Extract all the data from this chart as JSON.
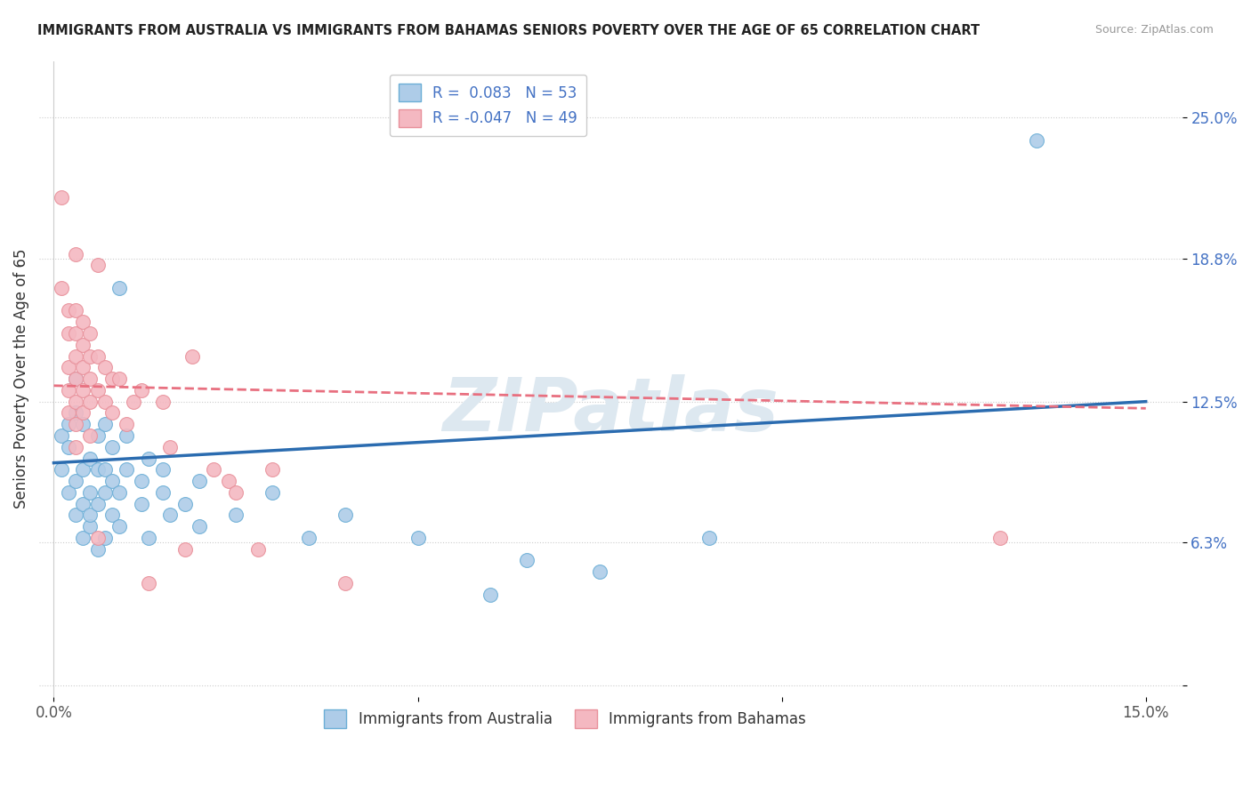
{
  "title": "IMMIGRANTS FROM AUSTRALIA VS IMMIGRANTS FROM BAHAMAS SENIORS POVERTY OVER THE AGE OF 65 CORRELATION CHART",
  "source": "Source: ZipAtlas.com",
  "ylabel": "Seniors Poverty Over the Age of 65",
  "xlim": [
    -0.002,
    0.155
  ],
  "ylim": [
    -0.005,
    0.275
  ],
  "yticks": [
    0.0,
    0.063,
    0.125,
    0.188,
    0.25
  ],
  "ytick_labels": [
    "",
    "6.3%",
    "12.5%",
    "18.8%",
    "25.0%"
  ],
  "xticks": [
    0.0,
    0.05,
    0.1,
    0.15
  ],
  "xtick_labels": [
    "0.0%",
    "",
    "",
    "15.0%"
  ],
  "australia_color": "#aecce8",
  "bahamas_color": "#f4b8c1",
  "australia_edge_color": "#6baed6",
  "bahamas_edge_color": "#e8909a",
  "australia_line_color": "#2b6cb0",
  "bahamas_line_color": "#e87080",
  "watermark_color": "#dde8f0",
  "background_color": "#ffffff",
  "grid_color": "#cccccc",
  "R_australia": 0.083,
  "N_australia": 53,
  "R_bahamas": -0.047,
  "N_bahamas": 49,
  "aus_line_x0": 0.0,
  "aus_line_y0": 0.098,
  "aus_line_x1": 0.15,
  "aus_line_y1": 0.125,
  "bah_line_x0": 0.0,
  "bah_line_y0": 0.132,
  "bah_line_x1": 0.15,
  "bah_line_y1": 0.122,
  "australia_scatter": [
    [
      0.001,
      0.095
    ],
    [
      0.001,
      0.11
    ],
    [
      0.002,
      0.085
    ],
    [
      0.002,
      0.105
    ],
    [
      0.002,
      0.115
    ],
    [
      0.003,
      0.075
    ],
    [
      0.003,
      0.09
    ],
    [
      0.003,
      0.12
    ],
    [
      0.003,
      0.135
    ],
    [
      0.004,
      0.065
    ],
    [
      0.004,
      0.08
    ],
    [
      0.004,
      0.095
    ],
    [
      0.004,
      0.115
    ],
    [
      0.005,
      0.07
    ],
    [
      0.005,
      0.075
    ],
    [
      0.005,
      0.085
    ],
    [
      0.005,
      0.1
    ],
    [
      0.006,
      0.06
    ],
    [
      0.006,
      0.08
    ],
    [
      0.006,
      0.095
    ],
    [
      0.006,
      0.11
    ],
    [
      0.007,
      0.065
    ],
    [
      0.007,
      0.085
    ],
    [
      0.007,
      0.095
    ],
    [
      0.007,
      0.115
    ],
    [
      0.008,
      0.075
    ],
    [
      0.008,
      0.09
    ],
    [
      0.008,
      0.105
    ],
    [
      0.009,
      0.07
    ],
    [
      0.009,
      0.085
    ],
    [
      0.009,
      0.175
    ],
    [
      0.01,
      0.095
    ],
    [
      0.01,
      0.11
    ],
    [
      0.012,
      0.08
    ],
    [
      0.012,
      0.09
    ],
    [
      0.013,
      0.065
    ],
    [
      0.013,
      0.1
    ],
    [
      0.015,
      0.085
    ],
    [
      0.015,
      0.095
    ],
    [
      0.016,
      0.075
    ],
    [
      0.018,
      0.08
    ],
    [
      0.02,
      0.07
    ],
    [
      0.02,
      0.09
    ],
    [
      0.025,
      0.075
    ],
    [
      0.03,
      0.085
    ],
    [
      0.035,
      0.065
    ],
    [
      0.04,
      0.075
    ],
    [
      0.05,
      0.065
    ],
    [
      0.06,
      0.04
    ],
    [
      0.065,
      0.055
    ],
    [
      0.075,
      0.05
    ],
    [
      0.09,
      0.065
    ],
    [
      0.135,
      0.24
    ]
  ],
  "bahamas_scatter": [
    [
      0.001,
      0.215
    ],
    [
      0.001,
      0.175
    ],
    [
      0.002,
      0.165
    ],
    [
      0.002,
      0.155
    ],
    [
      0.002,
      0.14
    ],
    [
      0.002,
      0.13
    ],
    [
      0.002,
      0.12
    ],
    [
      0.003,
      0.19
    ],
    [
      0.003,
      0.165
    ],
    [
      0.003,
      0.155
    ],
    [
      0.003,
      0.145
    ],
    [
      0.003,
      0.135
    ],
    [
      0.003,
      0.125
    ],
    [
      0.003,
      0.115
    ],
    [
      0.003,
      0.105
    ],
    [
      0.004,
      0.16
    ],
    [
      0.004,
      0.15
    ],
    [
      0.004,
      0.14
    ],
    [
      0.004,
      0.13
    ],
    [
      0.004,
      0.12
    ],
    [
      0.005,
      0.155
    ],
    [
      0.005,
      0.145
    ],
    [
      0.005,
      0.135
    ],
    [
      0.005,
      0.125
    ],
    [
      0.005,
      0.11
    ],
    [
      0.006,
      0.185
    ],
    [
      0.006,
      0.145
    ],
    [
      0.006,
      0.13
    ],
    [
      0.006,
      0.065
    ],
    [
      0.007,
      0.14
    ],
    [
      0.007,
      0.125
    ],
    [
      0.008,
      0.135
    ],
    [
      0.008,
      0.12
    ],
    [
      0.009,
      0.135
    ],
    [
      0.01,
      0.115
    ],
    [
      0.011,
      0.125
    ],
    [
      0.012,
      0.13
    ],
    [
      0.013,
      0.045
    ],
    [
      0.015,
      0.125
    ],
    [
      0.016,
      0.105
    ],
    [
      0.018,
      0.06
    ],
    [
      0.019,
      0.145
    ],
    [
      0.022,
      0.095
    ],
    [
      0.024,
      0.09
    ],
    [
      0.025,
      0.085
    ],
    [
      0.028,
      0.06
    ],
    [
      0.03,
      0.095
    ],
    [
      0.04,
      0.045
    ],
    [
      0.13,
      0.065
    ]
  ]
}
